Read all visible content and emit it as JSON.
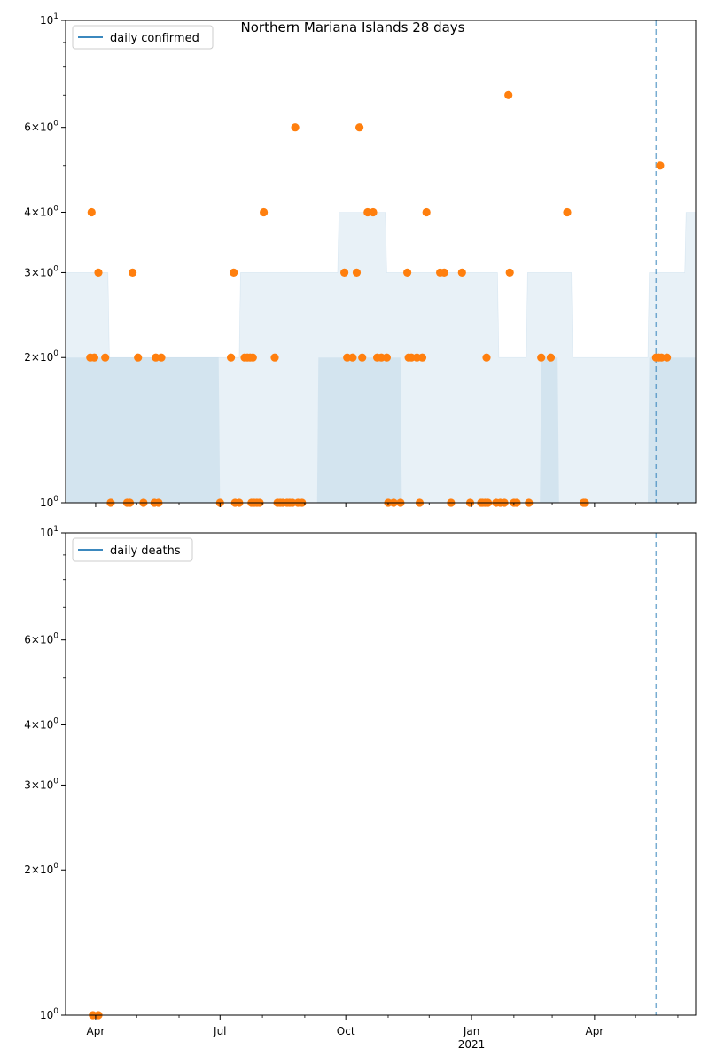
{
  "title": "Northern Mariana Islands 28 days",
  "colors": {
    "line": "#1f77b4",
    "points": "#ff7f0e",
    "band": "#1f77b4",
    "vline": "#1f77b4"
  },
  "chart_data": [
    {
      "type": "scatter",
      "legend": "daily confirmed",
      "legend_position": "top-left",
      "yscale": "log",
      "ylim": [
        1,
        10
      ],
      "ytick_labels": [
        "10^0",
        "2×10^0",
        "3×10^0",
        "4×10^0",
        "6×10^0",
        "10^1"
      ],
      "xlim": [
        "2020-03-10",
        "2021-06-14"
      ],
      "vline": "2021-05-16",
      "band_outer": [
        {
          "x": "2020-03-10",
          "y": 3
        },
        {
          "x": "2020-04-10",
          "y": 3
        },
        {
          "x": "2020-04-11",
          "y": 2
        },
        {
          "x": "2020-04-30",
          "y": 2
        },
        {
          "x": "2020-05-01",
          "y": 2
        },
        {
          "x": "2020-07-15",
          "y": 2
        },
        {
          "x": "2020-07-16",
          "y": 3
        },
        {
          "x": "2020-09-25",
          "y": 3
        },
        {
          "x": "2020-09-26",
          "y": 4
        },
        {
          "x": "2020-10-30",
          "y": 4
        },
        {
          "x": "2020-10-31",
          "y": 3
        },
        {
          "x": "2021-01-20",
          "y": 3
        },
        {
          "x": "2021-01-21",
          "y": 2
        },
        {
          "x": "2021-02-10",
          "y": 2
        },
        {
          "x": "2021-02-11",
          "y": 3
        },
        {
          "x": "2021-03-15",
          "y": 3
        },
        {
          "x": "2021-03-16",
          "y": 2
        },
        {
          "x": "2021-05-10",
          "y": 2
        },
        {
          "x": "2021-05-11",
          "y": 3
        },
        {
          "x": "2021-06-06",
          "y": 3
        },
        {
          "x": "2021-06-07",
          "y": 4
        },
        {
          "x": "2021-06-14",
          "y": 4
        }
      ],
      "band_inner": [
        {
          "x": "2020-03-10",
          "y": 2
        },
        {
          "x": "2020-06-30",
          "y": 2
        },
        {
          "x": "2020-07-01",
          "y": 1
        },
        {
          "x": "2020-09-10",
          "y": 1
        },
        {
          "x": "2020-09-11",
          "y": 2
        },
        {
          "x": "2020-11-10",
          "y": 2
        },
        {
          "x": "2020-11-11",
          "y": 1
        },
        {
          "x": "2021-02-20",
          "y": 1
        },
        {
          "x": "2021-02-21",
          "y": 2
        },
        {
          "x": "2021-03-05",
          "y": 2
        },
        {
          "x": "2021-03-06",
          "y": 1
        },
        {
          "x": "2021-05-10",
          "y": 1
        },
        {
          "x": "2021-05-11",
          "y": 2
        },
        {
          "x": "2021-06-14",
          "y": 2
        }
      ],
      "points": [
        {
          "x": "2020-03-28",
          "y": 2
        },
        {
          "x": "2020-03-29",
          "y": 4
        },
        {
          "x": "2020-03-31",
          "y": 2
        },
        {
          "x": "2020-04-03",
          "y": 3
        },
        {
          "x": "2020-04-08",
          "y": 2
        },
        {
          "x": "2020-04-12",
          "y": 1
        },
        {
          "x": "2020-04-24",
          "y": 1
        },
        {
          "x": "2020-04-26",
          "y": 1
        },
        {
          "x": "2020-04-28",
          "y": 3
        },
        {
          "x": "2020-05-02",
          "y": 2
        },
        {
          "x": "2020-05-06",
          "y": 1
        },
        {
          "x": "2020-05-14",
          "y": 1
        },
        {
          "x": "2020-05-15",
          "y": 2
        },
        {
          "x": "2020-05-17",
          "y": 1
        },
        {
          "x": "2020-05-19",
          "y": 2
        },
        {
          "x": "2020-07-01",
          "y": 1
        },
        {
          "x": "2020-07-09",
          "y": 2
        },
        {
          "x": "2020-07-11",
          "y": 3
        },
        {
          "x": "2020-07-12",
          "y": 1
        },
        {
          "x": "2020-07-15",
          "y": 1
        },
        {
          "x": "2020-07-19",
          "y": 2
        },
        {
          "x": "2020-07-21",
          "y": 2
        },
        {
          "x": "2020-07-23",
          "y": 2
        },
        {
          "x": "2020-07-24",
          "y": 1
        },
        {
          "x": "2020-07-25",
          "y": 2
        },
        {
          "x": "2020-07-26",
          "y": 1
        },
        {
          "x": "2020-07-28",
          "y": 1
        },
        {
          "x": "2020-07-30",
          "y": 1
        },
        {
          "x": "2020-08-02",
          "y": 4
        },
        {
          "x": "2020-08-10",
          "y": 2
        },
        {
          "x": "2020-08-12",
          "y": 1
        },
        {
          "x": "2020-08-14",
          "y": 1
        },
        {
          "x": "2020-08-16",
          "y": 1
        },
        {
          "x": "2020-08-19",
          "y": 1
        },
        {
          "x": "2020-08-21",
          "y": 1
        },
        {
          "x": "2020-08-23",
          "y": 1
        },
        {
          "x": "2020-08-25",
          "y": 6
        },
        {
          "x": "2020-08-27",
          "y": 1
        },
        {
          "x": "2020-08-30",
          "y": 1
        },
        {
          "x": "2020-09-30",
          "y": 3
        },
        {
          "x": "2020-10-02",
          "y": 2
        },
        {
          "x": "2020-10-06",
          "y": 2
        },
        {
          "x": "2020-10-09",
          "y": 3
        },
        {
          "x": "2020-10-11",
          "y": 6
        },
        {
          "x": "2020-10-13",
          "y": 2
        },
        {
          "x": "2020-10-17",
          "y": 4
        },
        {
          "x": "2020-10-21",
          "y": 4
        },
        {
          "x": "2020-10-24",
          "y": 2
        },
        {
          "x": "2020-10-27",
          "y": 2
        },
        {
          "x": "2020-10-31",
          "y": 2
        },
        {
          "x": "2020-11-01",
          "y": 1
        },
        {
          "x": "2020-11-05",
          "y": 1
        },
        {
          "x": "2020-11-10",
          "y": 1
        },
        {
          "x": "2020-11-15",
          "y": 3
        },
        {
          "x": "2020-11-16",
          "y": 2
        },
        {
          "x": "2020-11-18",
          "y": 2
        },
        {
          "x": "2020-11-22",
          "y": 2
        },
        {
          "x": "2020-11-24",
          "y": 1
        },
        {
          "x": "2020-11-26",
          "y": 2
        },
        {
          "x": "2020-11-29",
          "y": 4
        },
        {
          "x": "2020-12-09",
          "y": 3
        },
        {
          "x": "2020-12-12",
          "y": 3
        },
        {
          "x": "2020-12-17",
          "y": 1
        },
        {
          "x": "2020-12-25",
          "y": 3
        },
        {
          "x": "2020-12-31",
          "y": 1
        },
        {
          "x": "2021-01-08",
          "y": 1
        },
        {
          "x": "2021-01-09",
          "y": 1
        },
        {
          "x": "2021-01-11",
          "y": 1
        },
        {
          "x": "2021-01-12",
          "y": 2
        },
        {
          "x": "2021-01-13",
          "y": 1
        },
        {
          "x": "2021-01-19",
          "y": 1
        },
        {
          "x": "2021-01-22",
          "y": 1
        },
        {
          "x": "2021-01-25",
          "y": 1
        },
        {
          "x": "2021-01-28",
          "y": 7
        },
        {
          "x": "2021-01-29",
          "y": 3
        },
        {
          "x": "2021-02-01",
          "y": 1
        },
        {
          "x": "2021-02-03",
          "y": 1
        },
        {
          "x": "2021-02-12",
          "y": 1
        },
        {
          "x": "2021-02-21",
          "y": 2
        },
        {
          "x": "2021-02-28",
          "y": 2
        },
        {
          "x": "2021-03-12",
          "y": 4
        },
        {
          "x": "2021-03-24",
          "y": 1
        },
        {
          "x": "2021-03-25",
          "y": 1
        },
        {
          "x": "2021-05-16",
          "y": 2
        },
        {
          "x": "2021-05-18",
          "y": 2
        },
        {
          "x": "2021-05-19",
          "y": 5
        },
        {
          "x": "2021-05-20",
          "y": 2
        },
        {
          "x": "2021-05-24",
          "y": 2
        }
      ]
    },
    {
      "type": "scatter",
      "legend": "daily deaths",
      "legend_position": "top-left",
      "yscale": "log",
      "ylim": [
        1,
        10
      ],
      "ytick_labels": [
        "10^0",
        "2×10^0",
        "3×10^0",
        "4×10^0",
        "6×10^0",
        "10^1"
      ],
      "xlim": [
        "2020-03-10",
        "2021-06-14"
      ],
      "xtick_labels": [
        "Apr",
        "Jul",
        "Oct",
        "Jan",
        "Apr"
      ],
      "xtick_sublabel": "2021",
      "vline": "2021-05-16",
      "points": [
        {
          "x": "2020-03-30",
          "y": 1
        },
        {
          "x": "2020-04-03",
          "y": 1
        }
      ]
    }
  ]
}
